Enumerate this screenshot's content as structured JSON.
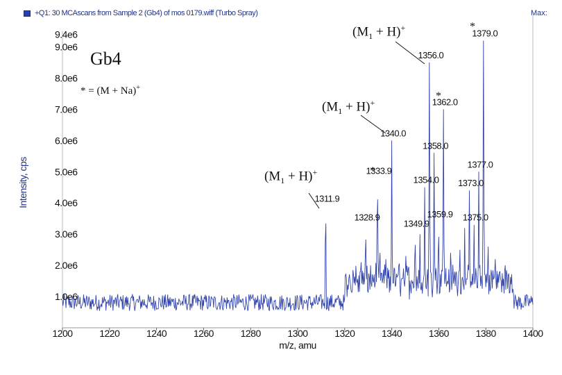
{
  "header": {
    "scan_title": "+Q1: 30 MCAscans from Sample 2 (Gb4) of mos 0179.wiff (Turbo Spray)",
    "max_label": "Max:"
  },
  "annotations": {
    "compound": "Gb4",
    "legend_note": "* = (M + Na)",
    "legend_sup": "+",
    "ion_label_prefix": "(M",
    "ion_label_sub": "1",
    "ion_label_suffix": " + H)",
    "ion_label_sup": "+",
    "star": "*"
  },
  "chart_data": {
    "type": "line",
    "xlabel": "m/z, amu",
    "ylabel": "Intensity, cps",
    "xlim": [
      1200,
      1400
    ],
    "ylim": [
      0,
      9500000.0
    ],
    "x_ticks": [
      "1200",
      "1220",
      "1240",
      "1260",
      "1280",
      "1300",
      "1320",
      "1340",
      "1360",
      "1380",
      "1400"
    ],
    "y_ticks": [
      "1.0e6",
      "2.0e6",
      "3.0e6",
      "4.0e6",
      "5.0e6",
      "6.0e6",
      "7.0e6",
      "8.0e6",
      "9.0e6",
      "9.4e6"
    ],
    "baseline": 900000.0,
    "peaks": [
      {
        "x": 1311.9,
        "y": 3900000.0,
        "label": "1311.9"
      },
      {
        "x": 1328.9,
        "y": 3300000.0,
        "label": "1328.9"
      },
      {
        "x": 1333.9,
        "y": 4800000.0,
        "label": "1333.9"
      },
      {
        "x": 1334.9,
        "y": 2800000.0,
        "label": ""
      },
      {
        "x": 1340.0,
        "y": 6000000.0,
        "label": "1340.0"
      },
      {
        "x": 1349.9,
        "y": 3100000.0,
        "label": "1349.9"
      },
      {
        "x": 1354.0,
        "y": 4500000.0,
        "label": "1354.0"
      },
      {
        "x": 1356.0,
        "y": 8500000.0,
        "label": "1356.0"
      },
      {
        "x": 1358.0,
        "y": 5600000.0,
        "label": "1358.0"
      },
      {
        "x": 1359.9,
        "y": 3400000.0,
        "label": "1359.9"
      },
      {
        "x": 1362.0,
        "y": 7000000.0,
        "label": "1362.0"
      },
      {
        "x": 1373.0,
        "y": 4400000.0,
        "label": "1373.0"
      },
      {
        "x": 1375.0,
        "y": 3300000.0,
        "label": "1375.0"
      },
      {
        "x": 1377.0,
        "y": 5000000.0,
        "label": "1377.0"
      },
      {
        "x": 1379.0,
        "y": 9200000.0,
        "label": "1379.0"
      }
    ],
    "minor_peaks": [
      {
        "x": 1327.0,
        "y": 2100000.0
      },
      {
        "x": 1331.0,
        "y": 2000000.0
      },
      {
        "x": 1337.5,
        "y": 2200000.0
      },
      {
        "x": 1343.0,
        "y": 2000000.0
      },
      {
        "x": 1346.0,
        "y": 2300000.0
      },
      {
        "x": 1352.0,
        "y": 3000000.0
      },
      {
        "x": 1365.0,
        "y": 2400000.0
      },
      {
        "x": 1369.0,
        "y": 2500000.0
      },
      {
        "x": 1371.0,
        "y": 3200000.0
      },
      {
        "x": 1381.0,
        "y": 2600000.0
      },
      {
        "x": 1384.0,
        "y": 2200000.0
      }
    ]
  }
}
